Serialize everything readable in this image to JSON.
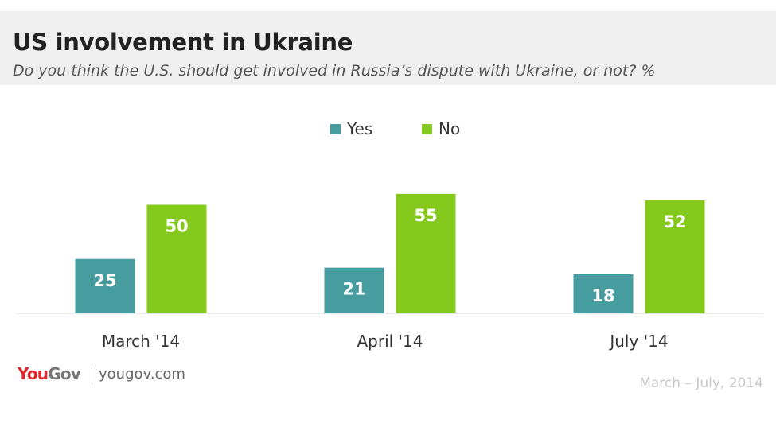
{
  "header": {
    "title": "US involvement in Ukraine",
    "subtitle": "Do you think the U.S. should get involved in Russia’s dispute with Ukraine, or not? %"
  },
  "footer": {
    "brand": "YouGov",
    "url": "yougov.com",
    "date_range": "March – July, 2014"
  },
  "colors": {
    "yes": "#469c9e",
    "no": "#84c91c",
    "brand_red": "#e0282e"
  },
  "chart_data": {
    "type": "bar",
    "title": "US involvement in Ukraine",
    "subtitle": "Do you think the U.S. should get involved in Russia’s dispute with Ukraine, or not? %",
    "xlabel": "",
    "ylabel": "",
    "categories": [
      "March '14",
      "April '14",
      "July '14"
    ],
    "series": [
      {
        "name": "Yes",
        "values": [
          25,
          21,
          18
        ]
      },
      {
        "name": "No",
        "values": [
          50,
          55,
          52
        ]
      }
    ],
    "ylim": [
      0,
      55
    ],
    "grid": false,
    "legend": "top-center",
    "data_labels": true
  }
}
